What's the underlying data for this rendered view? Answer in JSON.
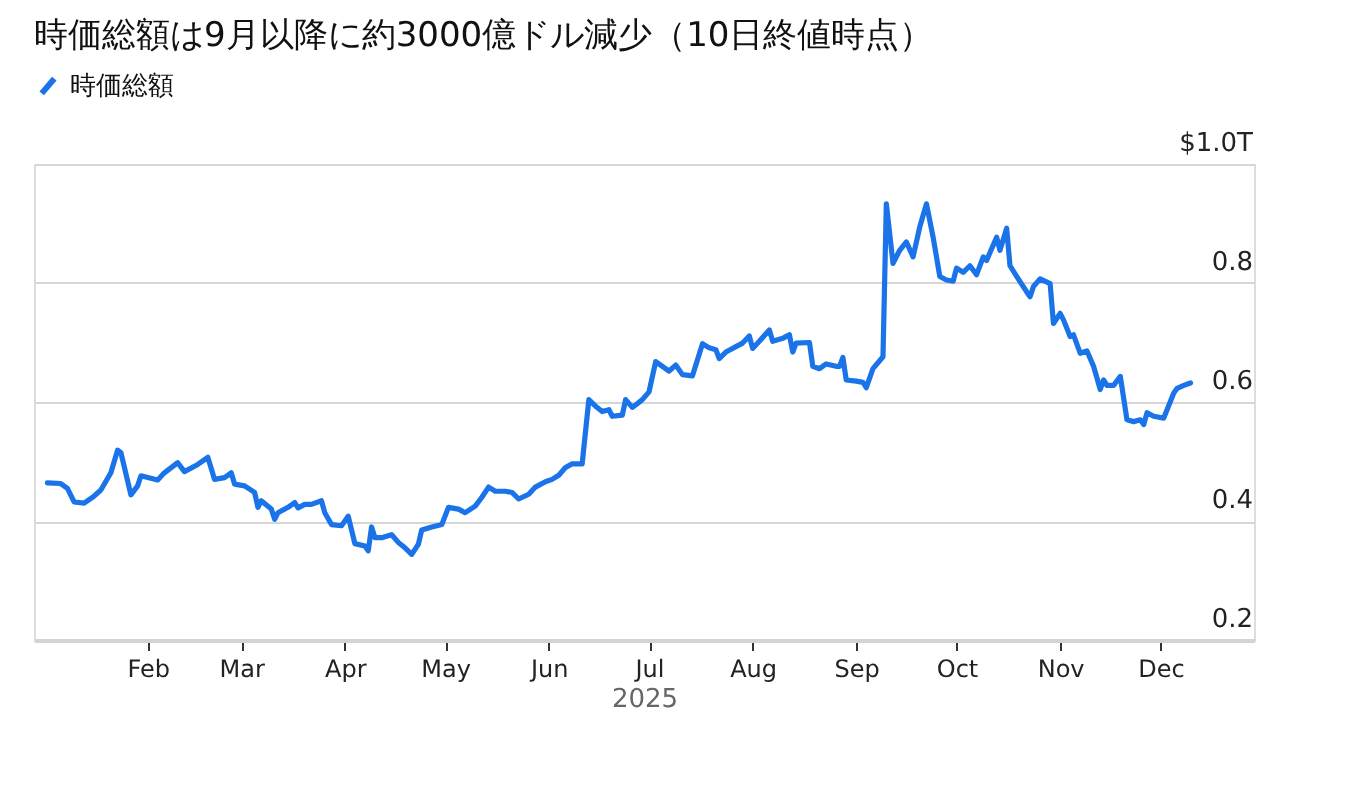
{
  "chart_data": {
    "type": "line",
    "title": "時価総額は9月以降に約3000億ドル減少（10日終値時点）",
    "xlabel": "2025",
    "x": [
      "2025-01-02",
      "2025-01-06",
      "2025-01-08",
      "2025-01-10",
      "2025-01-13",
      "2025-01-16",
      "2025-01-18",
      "2025-01-21",
      "2025-01-23",
      "2025-01-24",
      "2025-01-27",
      "2025-01-29",
      "2025-01-30",
      "2025-02-04",
      "2025-02-06",
      "2025-02-10",
      "2025-02-12",
      "2025-02-16",
      "2025-02-19",
      "2025-02-21",
      "2025-02-24",
      "2025-02-26",
      "2025-02-27",
      "2025-03-02",
      "2025-03-05",
      "2025-03-06",
      "2025-03-07",
      "2025-03-10",
      "2025-03-11",
      "2025-03-12",
      "2025-03-15",
      "2025-03-17",
      "2025-03-18",
      "2025-03-20",
      "2025-03-22",
      "2025-03-25",
      "2025-03-26",
      "2025-03-28",
      "2025-03-31",
      "2025-04-02",
      "2025-04-04",
      "2025-04-07",
      "2025-04-08",
      "2025-04-09",
      "2025-04-10",
      "2025-04-12",
      "2025-04-15",
      "2025-04-17",
      "2025-04-19",
      "2025-04-21",
      "2025-04-23",
      "2025-04-24",
      "2025-04-27",
      "2025-04-30",
      "2025-05-02",
      "2025-05-05",
      "2025-05-07",
      "2025-05-10",
      "2025-05-12",
      "2025-05-14",
      "2025-05-16",
      "2025-05-19",
      "2025-05-21",
      "2025-05-23",
      "2025-05-26",
      "2025-05-28",
      "2025-05-31",
      "2025-06-02",
      "2025-06-04",
      "2025-06-06",
      "2025-06-08",
      "2025-06-11",
      "2025-06-13",
      "2025-06-15",
      "2025-06-17",
      "2025-06-19",
      "2025-06-20",
      "2025-06-23",
      "2025-06-24",
      "2025-06-26",
      "2025-06-27",
      "2025-06-29",
      "2025-07-01",
      "2025-07-03",
      "2025-07-05",
      "2025-07-07",
      "2025-07-09",
      "2025-07-11",
      "2025-07-14",
      "2025-07-17",
      "2025-07-19",
      "2025-07-21",
      "2025-07-22",
      "2025-07-24",
      "2025-07-27",
      "2025-07-29",
      "2025-07-31",
      "2025-08-01",
      "2025-08-03",
      "2025-08-06",
      "2025-08-07",
      "2025-08-10",
      "2025-08-12",
      "2025-08-13",
      "2025-08-14",
      "2025-08-18",
      "2025-08-19",
      "2025-08-21",
      "2025-08-23",
      "2025-08-26",
      "2025-08-27",
      "2025-08-28",
      "2025-08-29",
      "2025-09-01",
      "2025-09-03",
      "2025-09-04",
      "2025-09-06",
      "2025-09-09",
      "2025-09-10",
      "2025-09-12",
      "2025-09-14",
      "2025-09-16",
      "2025-09-18",
      "2025-09-20",
      "2025-09-22",
      "2025-09-24",
      "2025-09-26",
      "2025-09-28",
      "2025-09-30",
      "2025-10-01",
      "2025-10-03",
      "2025-10-05",
      "2025-10-07",
      "2025-10-09",
      "2025-10-10",
      "2025-10-13",
      "2025-10-14",
      "2025-10-16",
      "2025-10-17",
      "2025-10-19",
      "2025-10-22",
      "2025-10-23",
      "2025-10-24",
      "2025-10-26",
      "2025-10-29",
      "2025-10-30",
      "2025-11-01",
      "2025-11-02",
      "2025-11-04",
      "2025-11-05",
      "2025-11-07",
      "2025-11-09",
      "2025-11-11",
      "2025-11-13",
      "2025-11-14",
      "2025-11-15",
      "2025-11-17",
      "2025-11-19",
      "2025-11-21",
      "2025-11-23",
      "2025-11-25",
      "2025-11-26",
      "2025-11-27",
      "2025-11-29",
      "2025-12-02",
      "2025-12-05",
      "2025-12-06",
      "2025-12-08",
      "2025-12-10"
    ],
    "series": [
      {
        "name": "時価総額",
        "color": "#1a73e8",
        "values": [
          0.464,
          0.463,
          0.455,
          0.432,
          0.43,
          0.442,
          0.452,
          0.481,
          0.519,
          0.515,
          0.444,
          0.459,
          0.476,
          0.469,
          0.481,
          0.498,
          0.483,
          0.495,
          0.507,
          0.47,
          0.473,
          0.481,
          0.462,
          0.459,
          0.448,
          0.423,
          0.434,
          0.42,
          0.403,
          0.414,
          0.423,
          0.431,
          0.422,
          0.428,
          0.428,
          0.434,
          0.414,
          0.394,
          0.392,
          0.408,
          0.362,
          0.358,
          0.35,
          0.39,
          0.372,
          0.372,
          0.377,
          0.364,
          0.355,
          0.344,
          0.361,
          0.385,
          0.39,
          0.394,
          0.423,
          0.42,
          0.414,
          0.425,
          0.44,
          0.457,
          0.45,
          0.45,
          0.448,
          0.437,
          0.445,
          0.457,
          0.466,
          0.47,
          0.477,
          0.49,
          0.496,
          0.496,
          0.604,
          0.593,
          0.584,
          0.587,
          0.576,
          0.578,
          0.604,
          0.591,
          0.595,
          0.604,
          0.617,
          0.668,
          0.66,
          0.652,
          0.662,
          0.646,
          0.644,
          0.698,
          0.691,
          0.688,
          0.673,
          0.684,
          0.693,
          0.699,
          0.711,
          0.69,
          0.702,
          0.721,
          0.702,
          0.707,
          0.713,
          0.684,
          0.699,
          0.7,
          0.66,
          0.656,
          0.664,
          0.66,
          0.66,
          0.675,
          0.637,
          0.635,
          0.633,
          0.624,
          0.656,
          0.676,
          0.933,
          0.833,
          0.855,
          0.869,
          0.844,
          0.894,
          0.933,
          0.877,
          0.811,
          0.805,
          0.803,
          0.825,
          0.818,
          0.829,
          0.814,
          0.844,
          0.838,
          0.877,
          0.855,
          0.892,
          0.829,
          0.811,
          0.785,
          0.777,
          0.794,
          0.807,
          0.799,
          0.732,
          0.749,
          0.738,
          0.71,
          0.713,
          0.682,
          0.686,
          0.66,
          0.621,
          0.637,
          0.628,
          0.628,
          0.643,
          0.57,
          0.567,
          0.57,
          0.562,
          0.582,
          0.576,
          0.573,
          0.615,
          0.623,
          0.628,
          0.632
        ]
      }
    ],
    "xlim": [
      "2024-12-29",
      "2025-12-29"
    ],
    "xticks": [
      {
        "value": "2025-02-01",
        "label": "Feb"
      },
      {
        "value": "2025-03-01",
        "label": "Mar"
      },
      {
        "value": "2025-04-01",
        "label": "Apr"
      },
      {
        "value": "2025-05-01",
        "label": "May"
      },
      {
        "value": "2025-06-01",
        "label": "Jun"
      },
      {
        "value": "2025-07-01",
        "label": "Jul"
      },
      {
        "value": "2025-08-01",
        "label": "Aug"
      },
      {
        "value": "2025-09-01",
        "label": "Sep"
      },
      {
        "value": "2025-10-01",
        "label": "Oct"
      },
      {
        "value": "2025-11-01",
        "label": "Nov"
      },
      {
        "value": "2025-12-01",
        "label": "Dec"
      }
    ],
    "ylim": [
      0.2,
      1.0
    ],
    "yticks": [
      0.2,
      0.4,
      0.6,
      0.8,
      {
        "value": 1.0,
        "label": "$1.0T"
      }
    ],
    "grid": "y",
    "legend": "top left",
    "line_style": "solid"
  }
}
